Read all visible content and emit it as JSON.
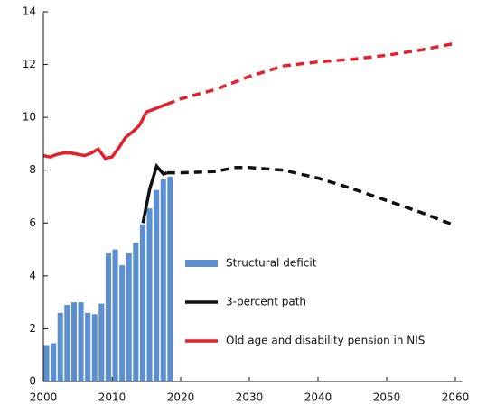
{
  "chart_data": {
    "type": "bar_line",
    "xlim": [
      2000,
      2061
    ],
    "xticks": [
      2000,
      2010,
      2020,
      2030,
      2040,
      2050,
      2060
    ],
    "ylim": [
      0,
      14
    ],
    "yticks": [
      0,
      2,
      4,
      6,
      8,
      10,
      12,
      14
    ],
    "dash_from": 2018,
    "series": [
      {
        "name": "Structural deficit",
        "type": "bar",
        "color": "#5b8fd0",
        "x": [
          2000,
          2001,
          2002,
          2003,
          2004,
          2005,
          2006,
          2007,
          2008,
          2009,
          2010,
          2011,
          2012,
          2013,
          2014,
          2015,
          2016,
          2017,
          2018
        ],
        "values": [
          1.35,
          1.45,
          2.6,
          2.9,
          3.0,
          3.0,
          2.6,
          2.55,
          2.95,
          4.85,
          5.0,
          4.4,
          4.85,
          5.25,
          5.95,
          6.55,
          7.25,
          7.65,
          7.75
        ]
      },
      {
        "name": "3-percent path",
        "type": "line",
        "color": "#111111",
        "x": [
          2014.5,
          2015.5,
          2016.5,
          2017.5,
          2018,
          2020,
          2025,
          2028,
          2030,
          2035,
          2040,
          2045,
          2050,
          2055,
          2060
        ],
        "values": [
          6.0,
          7.3,
          8.15,
          7.85,
          7.9,
          7.9,
          7.95,
          8.1,
          8.1,
          8.0,
          7.7,
          7.3,
          6.85,
          6.4,
          5.9
        ]
      },
      {
        "name": "Old age and disability pension in NIS",
        "type": "line",
        "color": "#e4202a",
        "x": [
          2000,
          2001,
          2002,
          2003,
          2004,
          2005,
          2006,
          2007,
          2008,
          2009,
          2010,
          2011,
          2012,
          2013,
          2014,
          2015,
          2016,
          2017,
          2018,
          2020,
          2025,
          2030,
          2035,
          2040,
          2045,
          2050,
          2055,
          2060
        ],
        "values": [
          8.55,
          8.5,
          8.6,
          8.65,
          8.65,
          8.6,
          8.55,
          8.65,
          8.8,
          8.45,
          8.5,
          8.85,
          9.25,
          9.45,
          9.7,
          10.2,
          10.3,
          10.4,
          10.5,
          10.7,
          11.05,
          11.55,
          11.95,
          12.1,
          12.2,
          12.35,
          12.55,
          12.8
        ]
      }
    ]
  }
}
